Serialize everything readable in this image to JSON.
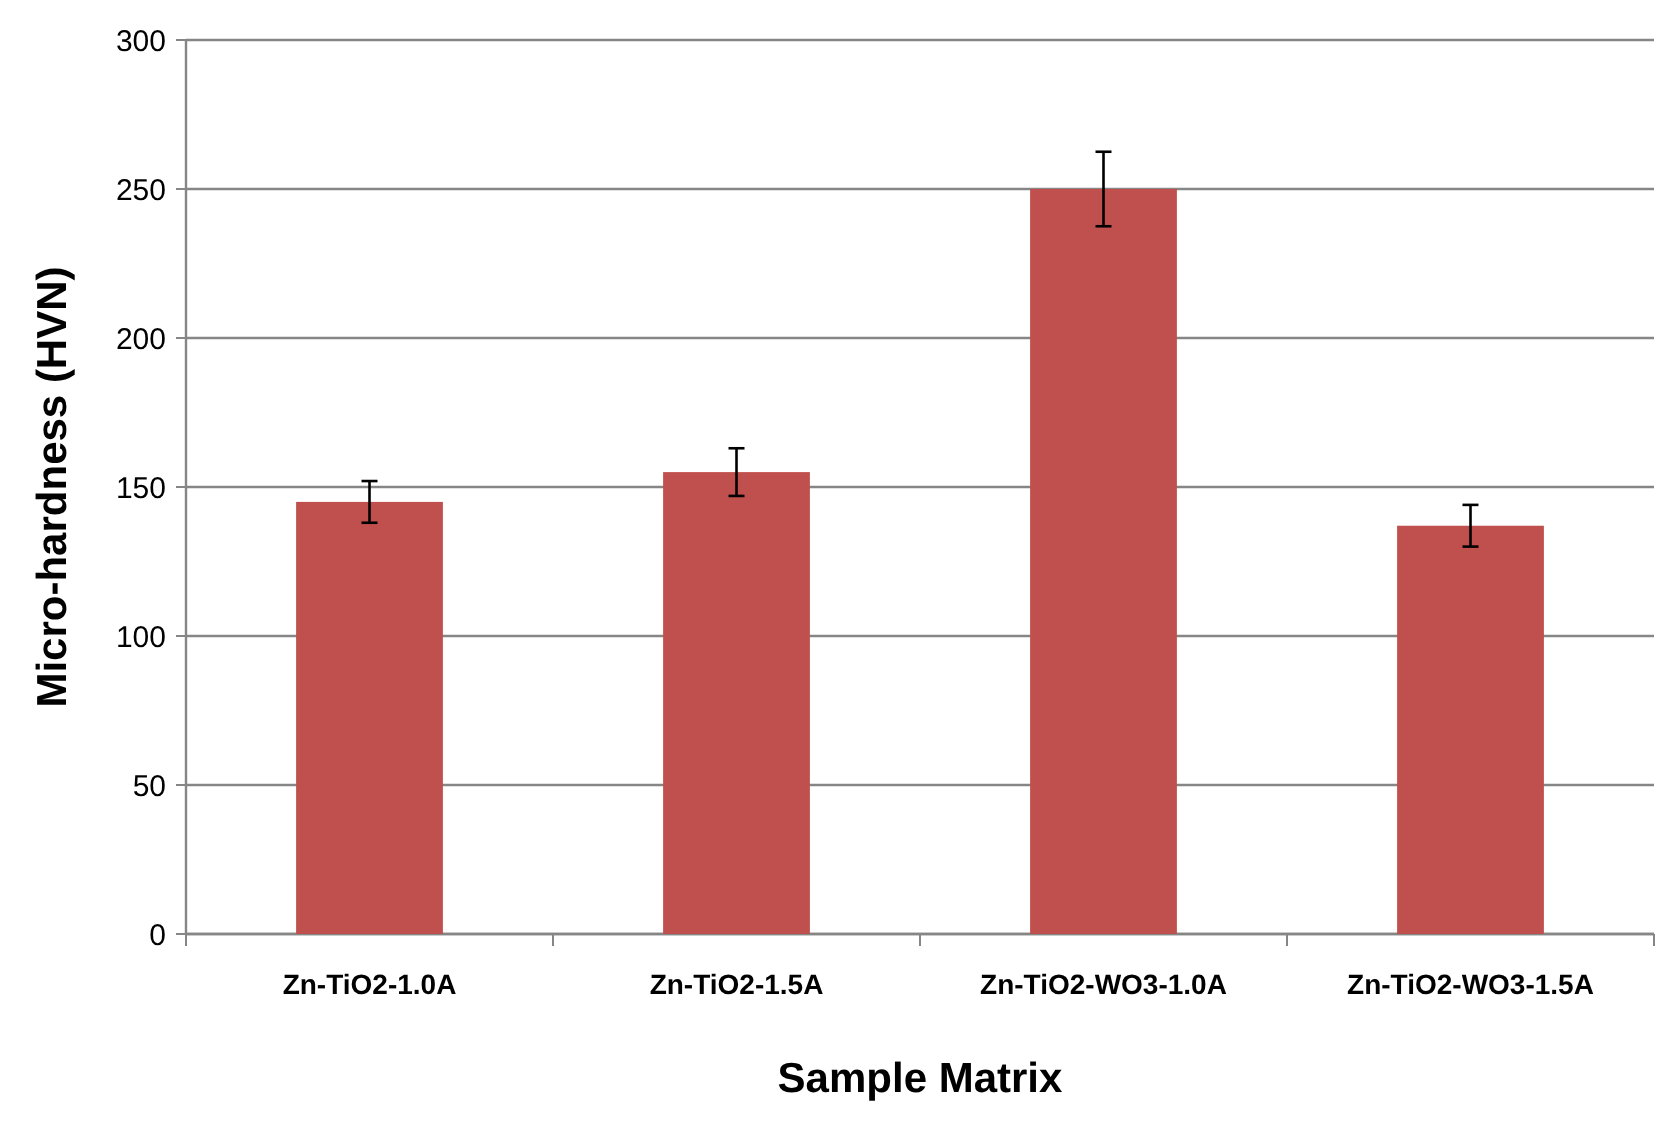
{
  "chart_data": {
    "type": "bar",
    "xlabel": "Sample  Matrix",
    "ylabel": "Micro-hardness (HVN)",
    "categories": [
      "Zn-TiO2-1.0A",
      "Zn-TiO2-1.5A",
      "Zn-TiO2-WO3-1.0A",
      "Zn-TiO2-WO3-1.5A"
    ],
    "values": [
      145,
      155,
      250,
      137
    ],
    "errors": [
      7,
      8,
      12.5,
      7
    ],
    "color": "#c0504d",
    "ylim": [
      0,
      300
    ],
    "yticks": [
      0,
      50,
      100,
      150,
      200,
      250,
      300
    ],
    "grid": "y"
  }
}
